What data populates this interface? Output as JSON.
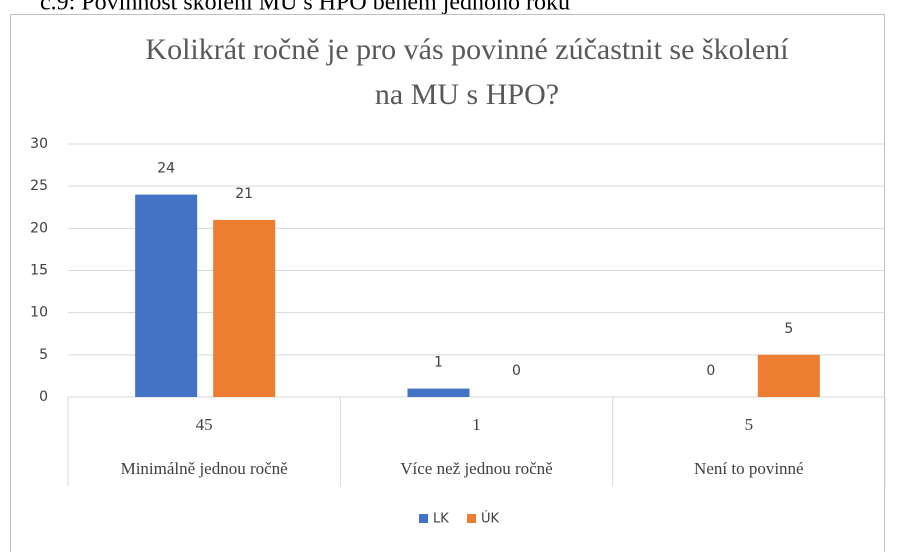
{
  "caption": "č.9: Povinnost školení MU s HPO během jednoho roku",
  "chart_data": {
    "type": "bar",
    "title": "Kolikrát ročně je pro vás povinné zúčastnit se školení na MU s HPO?",
    "categories": [
      "Minimálně jednou ročně",
      "Více než jednou ročně",
      "Není to povinné"
    ],
    "category_totals": [
      45,
      1,
      5
    ],
    "series": [
      {
        "name": "LK",
        "color": "#4472c4",
        "values": [
          24,
          1,
          0
        ]
      },
      {
        "name": "ÚK",
        "color": "#ed7d31",
        "values": [
          21,
          0,
          5
        ]
      }
    ],
    "ylim": [
      0,
      30
    ],
    "yticks": [
      0,
      5,
      10,
      15,
      20,
      25,
      30
    ],
    "grid": true,
    "legend": "bottom"
  }
}
